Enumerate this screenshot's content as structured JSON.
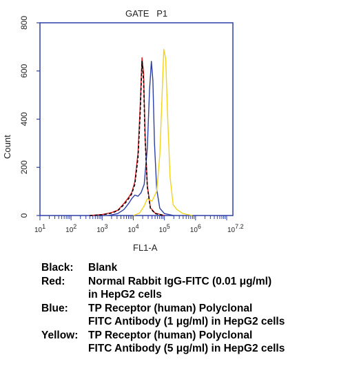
{
  "chart_data": {
    "type": "line",
    "title": "GATE   P1",
    "xlabel": "FL1-A",
    "ylabel": "Count",
    "x_scale": "log",
    "xlim": [
      1,
      7.2
    ],
    "ylim": [
      0,
      800
    ],
    "x_ticks": [
      {
        "value": 1,
        "label": "10^1"
      },
      {
        "value": 2,
        "label": "10^2"
      },
      {
        "value": 3,
        "label": "10^3"
      },
      {
        "value": 4,
        "label": "10^4"
      },
      {
        "value": 5,
        "label": "10^5"
      },
      {
        "value": 6,
        "label": "10^6"
      },
      {
        "value": 7.2,
        "label": "10^7.2"
      }
    ],
    "y_ticks": [
      0,
      200,
      400,
      600,
      800
    ],
    "grid": false,
    "series": [
      {
        "color": "#000000",
        "dashed": true,
        "x": [
          2.6,
          3.0,
          3.3,
          3.5,
          3.7,
          3.85,
          3.95,
          4.05,
          4.15,
          4.22,
          4.28,
          4.33,
          4.38,
          4.45,
          4.55,
          4.7,
          5.0
        ],
        "y": [
          0,
          3,
          10,
          20,
          45,
          70,
          90,
          130,
          240,
          420,
          640,
          560,
          320,
          120,
          30,
          8,
          0
        ]
      },
      {
        "color": "#e8151b",
        "x": [
          2.6,
          3.0,
          3.3,
          3.5,
          3.7,
          3.85,
          3.95,
          4.05,
          4.15,
          4.22,
          4.28,
          4.33,
          4.38,
          4.45,
          4.55,
          4.7,
          5.0
        ],
        "y": [
          0,
          4,
          12,
          22,
          50,
          75,
          95,
          140,
          260,
          450,
          655,
          590,
          330,
          125,
          32,
          10,
          0
        ]
      },
      {
        "color": "#2b3ea6",
        "x": [
          3.2,
          3.5,
          3.7,
          3.85,
          3.95,
          4.05,
          4.15,
          4.25,
          4.35,
          4.45,
          4.52,
          4.58,
          4.63,
          4.68,
          4.75,
          4.85,
          5.0,
          5.3
        ],
        "y": [
          0,
          8,
          25,
          50,
          70,
          85,
          80,
          95,
          130,
          280,
          520,
          640,
          560,
          300,
          110,
          30,
          8,
          0
        ]
      },
      {
        "color": "#f2d21c",
        "x": [
          4.0,
          4.2,
          4.35,
          4.45,
          4.6,
          4.75,
          4.85,
          4.92,
          4.98,
          5.04,
          5.1,
          5.18,
          5.28,
          5.4,
          5.6,
          5.9
        ],
        "y": [
          0,
          10,
          40,
          70,
          60,
          100,
          250,
          480,
          690,
          650,
          420,
          160,
          45,
          25,
          8,
          0
        ]
      }
    ]
  },
  "legend": [
    {
      "key": "Black:",
      "line1": "Blank",
      "line2": ""
    },
    {
      "key": "Red:",
      "line1": "Normal Rabbit IgG-FITC (0.01 μg/ml)",
      "line2": "in HepG2 cells"
    },
    {
      "key": "Blue:",
      "line1": "TP Receptor (human) Polyclonal",
      "line2": "FITC Antibody (1 μg/ml) in HepG2 cells"
    },
    {
      "key": "Yellow:",
      "line1": "TP Receptor (human) Polyclonal",
      "line2": "FITC Antibody (5 μg/ml) in HepG2 cells"
    }
  ]
}
